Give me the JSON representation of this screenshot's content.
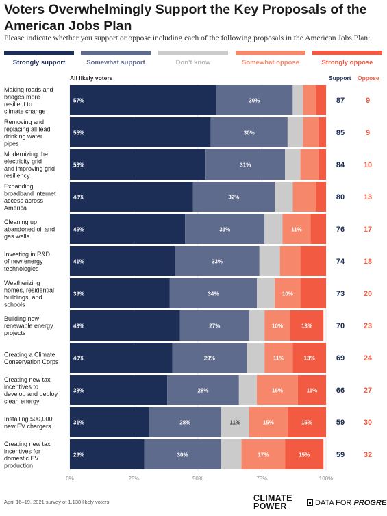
{
  "header": {
    "title": "Voters Overwhelmingly Support the Key Proposals of the American Jobs Plan",
    "subtitle": "Please indicate whether you support or oppose including each of the following proposals in the American Jobs Plan:"
  },
  "legend": [
    {
      "label": "Strongly support",
      "color": "#1c2e55"
    },
    {
      "label": "Somewhat support",
      "color": "#5f6b8c"
    },
    {
      "label": "Don't know",
      "color": "#cbcbcb"
    },
    {
      "label": "Somewhat oppose",
      "color": "#f7876b"
    },
    {
      "label": "Strongly oppose",
      "color": "#f25a42"
    }
  ],
  "columns": {
    "group_label": "All likely voters",
    "support_label": "Support",
    "oppose_label": "Oppose"
  },
  "colors": {
    "strongly_support": "#1c2e55",
    "somewhat_support": "#5f6b8c",
    "dont_know": "#cbcbcb",
    "somewhat_oppose": "#f7876b",
    "strongly_oppose": "#f25a42",
    "support_text": "#1c2e55",
    "oppose_text": "#f25a42"
  },
  "chart_data": {
    "type": "bar",
    "orientation": "horizontal",
    "stacked": true,
    "xlim": [
      0,
      100
    ],
    "x_ticks": [
      "0%",
      "25%",
      "50%",
      "75%",
      "100%"
    ],
    "grid": true,
    "categories": [
      "Making roads and bridges more resilient to climate change",
      "Removing and replacing all lead drinking water pipes",
      "Modernizing the electricity grid and improving grid resiliency",
      "Expanding broadband internet access across America",
      "Cleaning up abandoned oil and gas wells",
      "Investing in R&D of new energy technologies",
      "Weatherizing homes, residential buildings, and schools",
      "Building new renewable energy projects",
      "Creating a Climate Conservation Corps",
      "Creating new tax incentives to develop and deploy clean energy",
      "Installing 500,000 new EV chargers",
      "Creating new tax incentives for domestic EV production"
    ],
    "series": [
      {
        "name": "Strongly support",
        "values": [
          57,
          55,
          53,
          48,
          45,
          41,
          39,
          43,
          40,
          38,
          31,
          29
        ],
        "labels": [
          "57%",
          "55%",
          "53%",
          "48%",
          "45%",
          "41%",
          "39%",
          "43%",
          "40%",
          "38%",
          "31%",
          "29%"
        ]
      },
      {
        "name": "Somewhat support",
        "values": [
          30,
          30,
          31,
          32,
          31,
          33,
          34,
          27,
          29,
          28,
          28,
          30
        ],
        "labels": [
          "30%",
          "30%",
          "31%",
          "32%",
          "31%",
          "33%",
          "34%",
          "27%",
          "29%",
          "28%",
          "28%",
          "30%"
        ]
      },
      {
        "name": "Don't know",
        "values": [
          4,
          6,
          6,
          7,
          7,
          8,
          7,
          6,
          7,
          7,
          11,
          8
        ],
        "labels": [
          "",
          "",
          "",
          "",
          "",
          "",
          "",
          "",
          "",
          "",
          "11%",
          ""
        ]
      },
      {
        "name": "Somewhat oppose",
        "values": [
          5,
          6,
          7,
          9,
          11,
          8,
          10,
          10,
          11,
          16,
          15,
          17
        ],
        "labels": [
          "",
          "",
          "",
          "",
          "11%",
          "",
          "10%",
          "10%",
          "11%",
          "16%",
          "15%",
          "17%"
        ]
      },
      {
        "name": "Strongly oppose",
        "values": [
          4,
          3,
          3,
          4,
          6,
          10,
          10,
          13,
          13,
          11,
          15,
          15
        ],
        "labels": [
          "",
          "",
          "",
          "",
          "",
          "",
          "",
          "13%",
          "13%",
          "11%",
          "15%",
          "15%"
        ]
      }
    ],
    "support_totals": [
      87,
      85,
      84,
      80,
      76,
      74,
      73,
      70,
      69,
      66,
      59,
      59
    ],
    "oppose_totals": [
      9,
      9,
      10,
      13,
      17,
      18,
      20,
      23,
      24,
      27,
      30,
      32
    ]
  },
  "footer": {
    "note": "April 16–19, 2021 survey of 1,138 likely voters",
    "logo1": "CLIMATE POWER",
    "logo2_prefix": "DATA FOR ",
    "logo2_bold": "PROGRESS"
  }
}
